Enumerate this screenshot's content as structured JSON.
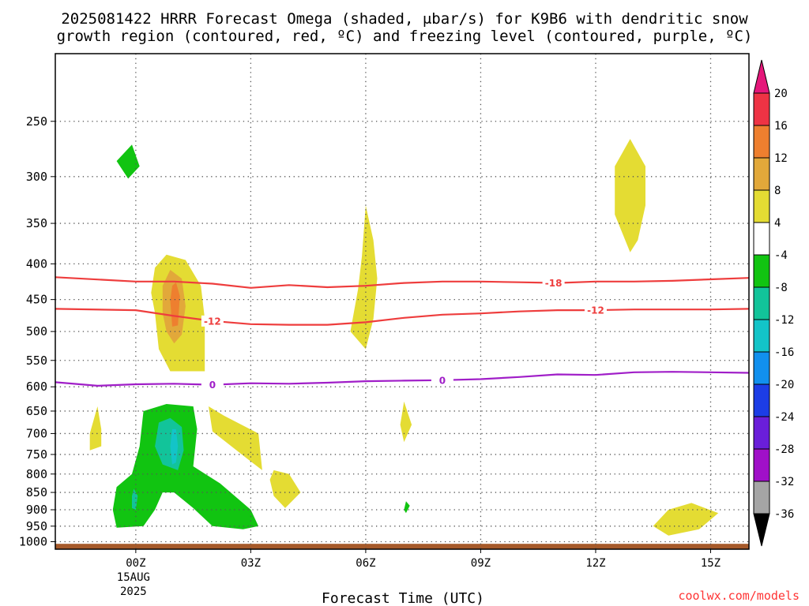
{
  "chart_data": {
    "type": "contour",
    "title_line1": "2025081422 HRRR Forecast Omega (shaded, μbar/s) for K9B6 with dendritic snow",
    "title_line2": "growth region (contoured, red, ºC) and freezing level (contoured, purple, ºC)",
    "xlabel": "Forecast Time (UTC)",
    "ylabel": "",
    "y_scale": "log-pressure",
    "y_reversed": true,
    "ylim": [
      200,
      1025
    ],
    "y_ticks": [
      250,
      300,
      350,
      400,
      450,
      500,
      550,
      600,
      650,
      700,
      750,
      800,
      850,
      900,
      950,
      1000
    ],
    "xlim": [
      -2.1,
      16.0
    ],
    "x_ticks": [
      {
        "value": 0,
        "label": "00Z",
        "sub1": "15AUG",
        "sub2": "2025"
      },
      {
        "value": 3,
        "label": "03Z"
      },
      {
        "value": 6,
        "label": "06Z"
      },
      {
        "value": 9,
        "label": "09Z"
      },
      {
        "value": 12,
        "label": "12Z"
      },
      {
        "value": 15,
        "label": "15Z"
      }
    ],
    "grid": true,
    "colorbar": {
      "ticks": [
        20,
        16,
        12,
        8,
        4,
        -4,
        -8,
        -12,
        -16,
        -20,
        -24,
        -28,
        -32,
        -36
      ],
      "bins": [
        {
          "range": [
            16,
            20
          ],
          "color": "#ee3344"
        },
        {
          "range": [
            12,
            16
          ],
          "color": "#ee7f2f"
        },
        {
          "range": [
            8,
            12
          ],
          "color": "#e2a83a"
        },
        {
          "range": [
            4,
            8
          ],
          "color": "#e4dc33"
        },
        {
          "range": [
            -4,
            4
          ],
          "color": "#ffffff"
        },
        {
          "range": [
            -8,
            -4
          ],
          "color": "#11c411"
        },
        {
          "range": [
            -12,
            -8
          ],
          "color": "#12c49a"
        },
        {
          "range": [
            -16,
            -12
          ],
          "color": "#13c4c8"
        },
        {
          "range": [
            -20,
            -16
          ],
          "color": "#1190ee"
        },
        {
          "range": [
            -24,
            -20
          ],
          "color": "#1c3de6"
        },
        {
          "range": [
            -28,
            -24
          ],
          "color": "#6a1ed9"
        },
        {
          "range": [
            -32,
            -28
          ],
          "color": "#a010c8"
        },
        {
          "range": [
            -36,
            -32
          ],
          "color": "#a5a5a5"
        }
      ],
      "over_color": "#e5177a",
      "under_color": "#000000"
    },
    "omega_regions": [
      {
        "color": "#e4dc33",
        "points": [
          [
            0.5,
            470
          ],
          [
            0.4,
            440
          ],
          [
            0.5,
            405
          ],
          [
            0.8,
            388
          ],
          [
            1.3,
            395
          ],
          [
            1.7,
            430
          ],
          [
            1.8,
            480
          ],
          [
            1.8,
            570
          ],
          [
            0.9,
            570
          ],
          [
            0.6,
            530
          ]
        ]
      },
      {
        "color": "#e2a83a",
        "points": [
          [
            0.7,
            470
          ],
          [
            0.7,
            430
          ],
          [
            0.9,
            408
          ],
          [
            1.2,
            420
          ],
          [
            1.3,
            460
          ],
          [
            1.2,
            505
          ],
          [
            1.0,
            520
          ],
          [
            0.8,
            500
          ]
        ]
      },
      {
        "color": "#ee7f2f",
        "points": [
          [
            0.9,
            452
          ],
          [
            0.95,
            430
          ],
          [
            1.05,
            425
          ],
          [
            1.15,
            445
          ],
          [
            1.1,
            490
          ],
          [
            0.95,
            492
          ]
        ]
      },
      {
        "color": "#e4dc33",
        "points": [
          [
            5.8,
            435
          ],
          [
            5.9,
            390
          ],
          [
            6.0,
            330
          ],
          [
            6.2,
            370
          ],
          [
            6.3,
            420
          ],
          [
            6.2,
            480
          ],
          [
            6.0,
            530
          ],
          [
            5.6,
            500
          ]
        ]
      },
      {
        "color": "#e4dc33",
        "points": [
          [
            12.5,
            290
          ],
          [
            12.9,
            265
          ],
          [
            13.3,
            290
          ],
          [
            13.3,
            330
          ],
          [
            13.1,
            370
          ],
          [
            12.9,
            385
          ],
          [
            12.5,
            340
          ]
        ]
      },
      {
        "color": "#e4dc33",
        "points": [
          [
            -1.2,
            700
          ],
          [
            -1.0,
            640
          ],
          [
            -0.9,
            690
          ],
          [
            -0.9,
            730
          ],
          [
            -1.2,
            740
          ]
        ]
      },
      {
        "color": "#e4dc33",
        "points": [
          [
            2.0,
            695
          ],
          [
            1.9,
            640
          ],
          [
            2.3,
            660
          ],
          [
            3.2,
            700
          ],
          [
            3.3,
            790
          ],
          [
            2.9,
            760
          ]
        ]
      },
      {
        "color": "#e4dc33",
        "points": [
          [
            3.5,
            815
          ],
          [
            3.6,
            790
          ],
          [
            4.0,
            800
          ],
          [
            4.3,
            850
          ],
          [
            3.9,
            895
          ],
          [
            3.6,
            860
          ]
        ]
      },
      {
        "color": "#e4dc33",
        "points": [
          [
            6.9,
            680
          ],
          [
            7.0,
            630
          ],
          [
            7.2,
            680
          ],
          [
            7.0,
            720
          ]
        ]
      },
      {
        "color": "#e4dc33",
        "points": [
          [
            13.5,
            950
          ],
          [
            13.9,
            900
          ],
          [
            14.5,
            880
          ],
          [
            15.2,
            910
          ],
          [
            14.7,
            960
          ],
          [
            13.9,
            980
          ]
        ]
      },
      {
        "color": "#11c411",
        "points": [
          [
            -0.5,
            285
          ],
          [
            -0.1,
            270
          ],
          [
            0.1,
            290
          ],
          [
            -0.2,
            302
          ]
        ]
      },
      {
        "color": "#11c411",
        "points": [
          [
            -0.6,
            900
          ],
          [
            -0.5,
            835
          ],
          [
            -0.1,
            800
          ],
          [
            0.1,
            730
          ],
          [
            0.2,
            650
          ],
          [
            0.8,
            635
          ],
          [
            1.5,
            640
          ],
          [
            1.6,
            690
          ],
          [
            1.5,
            780
          ],
          [
            2.2,
            825
          ],
          [
            3.0,
            900
          ],
          [
            3.2,
            950
          ],
          [
            2.8,
            960
          ],
          [
            2.0,
            950
          ],
          [
            1.5,
            895
          ],
          [
            1.0,
            850
          ],
          [
            0.7,
            850
          ],
          [
            0.5,
            900
          ],
          [
            0.2,
            950
          ],
          [
            -0.5,
            955
          ]
        ]
      },
      {
        "color": "#12c49a",
        "points": [
          [
            0.5,
            730
          ],
          [
            0.6,
            675
          ],
          [
            0.9,
            665
          ],
          [
            1.2,
            685
          ],
          [
            1.25,
            740
          ],
          [
            1.1,
            790
          ],
          [
            0.7,
            775
          ]
        ]
      },
      {
        "color": "#13c4c8",
        "points": [
          [
            0.9,
            730
          ],
          [
            0.95,
            690
          ],
          [
            1.05,
            690
          ],
          [
            1.1,
            730
          ],
          [
            1.05,
            770
          ],
          [
            0.95,
            775
          ]
        ]
      },
      {
        "color": "#12c49a",
        "points": [
          [
            -0.1,
            860
          ],
          [
            -0.05,
            840
          ],
          [
            0.05,
            860
          ],
          [
            0.0,
            900
          ],
          [
            -0.1,
            895
          ]
        ]
      },
      {
        "color": "#11c411",
        "points": [
          [
            7.0,
            900
          ],
          [
            7.05,
            875
          ],
          [
            7.15,
            888
          ],
          [
            7.05,
            910
          ]
        ]
      }
    ],
    "contours": [
      {
        "name": "-18",
        "color": "#ee3d3d",
        "label_color": "#ee3d3d",
        "x": [
          -2.1,
          0,
          1,
          2,
          3,
          4,
          5,
          6,
          7,
          8,
          9,
          10,
          11,
          12,
          13,
          14,
          15,
          16
        ],
        "y": [
          418,
          424,
          424,
          427,
          433,
          429,
          432,
          430,
          426,
          424,
          424,
          425,
          426,
          424,
          424,
          423,
          421,
          419
        ],
        "label_at": [
          10.9
        ]
      },
      {
        "name": "-12",
        "color": "#ee3d3d",
        "label_color": "#ee3d3d",
        "x": [
          -2.1,
          0,
          1,
          2,
          3,
          4,
          5,
          6,
          7,
          8,
          9,
          10,
          11,
          12,
          13,
          14,
          15,
          16
        ],
        "y": [
          464,
          466,
          475,
          483,
          488,
          489,
          489,
          485,
          478,
          473,
          471,
          468,
          466,
          466,
          465,
          465,
          465,
          464
        ],
        "label_at": [
          2.0,
          12.0
        ]
      },
      {
        "name": "0",
        "color": "#a01ec8",
        "label_color": "#a01ec8",
        "x": [
          -2.1,
          -1,
          0,
          1,
          2,
          3,
          4,
          5,
          6,
          7,
          8,
          9,
          10,
          11,
          12,
          13,
          14,
          15,
          16
        ],
        "y": [
          591,
          598,
          595,
          594,
          596,
          593,
          594,
          592,
          589,
          588,
          587,
          585,
          581,
          576,
          577,
          572,
          571,
          572,
          573
        ],
        "label_at": [
          2.0,
          8.0
        ]
      }
    ],
    "surface_color": "#a65a2a",
    "surface_top_pressure": 1007
  },
  "credit": "coolwx.com/models",
  "credit_color": "#ff3333"
}
